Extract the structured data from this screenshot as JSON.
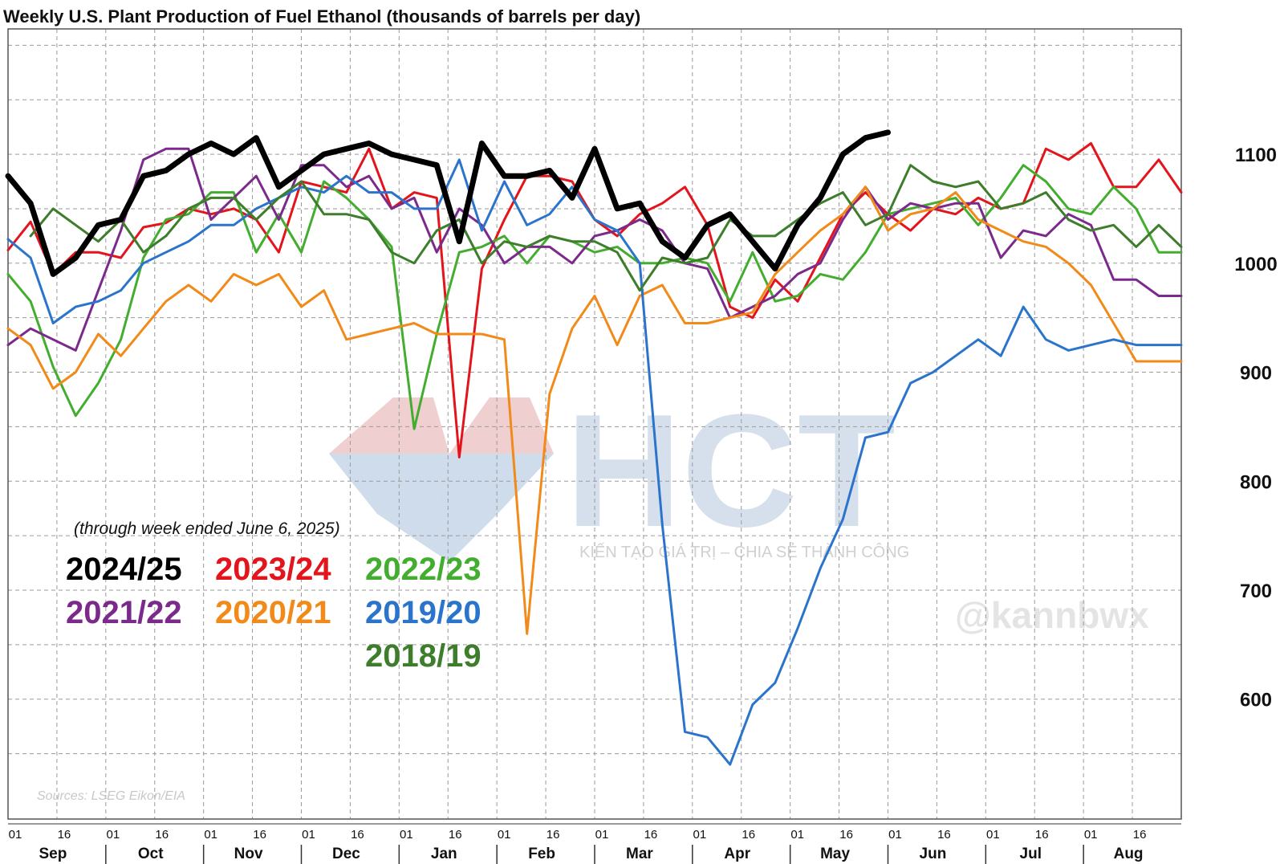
{
  "watermark": {
    "brand": "HCT",
    "tagline": "KIẾN TẠO GIÁ TRỊ – CHIA SẺ THÀNH CÔNG",
    "handle": "@kannbwx",
    "colors": {
      "red": "#e9b9bd",
      "blue": "#b9cde4"
    }
  },
  "chart_data": {
    "type": "line",
    "title": "Weekly U.S. Plant Production of Fuel Ethanol (thousands of barrels per day)",
    "note": "(through week ended June 6, 2025)",
    "source": "Sources: LSEG Eikon/EIA",
    "ylim": [
      490,
      1215
    ],
    "yticks": [
      600,
      700,
      800,
      900,
      1000,
      1100
    ],
    "y_axis_side": "right",
    "grid": true,
    "legend_placement": "lower-left",
    "x_axis": {
      "unit": "week",
      "start": "Sep 01",
      "end": "end of Aug",
      "range": [
        0,
        52
      ]
    },
    "months": [
      "Sep",
      "Oct",
      "Nov",
      "Dec",
      "Jan",
      "Feb",
      "Mar",
      "Apr",
      "May",
      "Jun",
      "Jul",
      "Aug"
    ],
    "day_ticks": [
      "01",
      "16"
    ],
    "series": [
      {
        "name": "2023/24",
        "color": "#e3141b",
        "width": 3,
        "x": [
          0,
          1,
          2,
          3,
          4,
          5,
          6,
          7,
          8,
          9,
          10,
          11,
          12,
          13,
          14,
          15,
          16,
          17,
          18,
          19,
          20,
          21,
          22,
          23,
          24,
          25,
          26,
          27,
          28,
          29,
          30,
          31,
          32,
          33,
          34,
          35,
          36,
          37,
          38,
          39,
          40,
          41,
          42,
          43,
          44,
          45,
          46,
          47,
          48,
          49,
          50,
          51,
          52
        ],
        "y": [
          1012,
          1038,
          990,
          1010,
          1010,
          1005,
          1033,
          1037,
          1050,
          1045,
          1050,
          1040,
          1010,
          1075,
          1070,
          1065,
          1105,
          1050,
          1065,
          1060,
          822,
          995,
          1040,
          1080,
          1080,
          1075,
          1040,
          1025,
          1045,
          1055,
          1070,
          1035,
          960,
          950,
          985,
          965,
          1005,
          1045,
          1065,
          1045,
          1030,
          1050,
          1045,
          1060,
          1050,
          1055,
          1105,
          1095,
          1110,
          1070,
          1070,
          1095,
          1065
        ]
      },
      {
        "name": "2022/23",
        "color": "#43ad2f",
        "width": 3,
        "x": [
          0,
          1,
          2,
          3,
          4,
          5,
          6,
          7,
          8,
          9,
          10,
          11,
          12,
          13,
          14,
          15,
          16,
          17,
          18,
          19,
          20,
          21,
          22,
          23,
          24,
          25,
          26,
          27,
          28,
          29,
          30,
          31,
          32,
          33,
          34,
          35,
          36,
          37,
          38,
          39,
          40,
          41,
          42,
          43,
          44,
          45,
          46,
          47,
          48,
          49,
          50,
          51,
          52
        ],
        "y": [
          990,
          965,
          905,
          860,
          890,
          930,
          1005,
          1040,
          1045,
          1065,
          1065,
          1010,
          1045,
          1010,
          1075,
          1060,
          1040,
          1015,
          848,
          935,
          1010,
          1015,
          1025,
          1000,
          1025,
          1020,
          1010,
          1015,
          1000,
          1000,
          1005,
          1000,
          965,
          1010,
          965,
          970,
          990,
          985,
          1010,
          1045,
          1050,
          1055,
          1060,
          1035,
          1060,
          1090,
          1075,
          1050,
          1045,
          1070,
          1050,
          1010,
          1010
        ]
      },
      {
        "name": "2021/22",
        "color": "#7b2a8c",
        "width": 3,
        "x": [
          0,
          1,
          2,
          3,
          4,
          5,
          6,
          7,
          8,
          9,
          10,
          11,
          12,
          13,
          14,
          15,
          16,
          17,
          18,
          19,
          20,
          21,
          22,
          23,
          24,
          25,
          26,
          27,
          28,
          29,
          30,
          31,
          32,
          33,
          34,
          35,
          36,
          37,
          38,
          39,
          40,
          41,
          42,
          43,
          44,
          45,
          46,
          47,
          48,
          49,
          50,
          51,
          52
        ],
        "y": [
          925,
          940,
          930,
          920,
          975,
          1030,
          1095,
          1105,
          1105,
          1040,
          1060,
          1080,
          1040,
          1090,
          1090,
          1070,
          1080,
          1050,
          1060,
          1010,
          1050,
          1035,
          1000,
          1015,
          1015,
          1000,
          1025,
          1030,
          1040,
          1030,
          1000,
          995,
          950,
          960,
          970,
          990,
          1000,
          1040,
          1070,
          1040,
          1055,
          1050,
          1055,
          1055,
          1005,
          1030,
          1025,
          1045,
          1035,
          985,
          985,
          970,
          970
        ]
      },
      {
        "name": "2020/21",
        "color": "#f28a1a",
        "width": 3,
        "x": [
          0,
          1,
          2,
          3,
          4,
          5,
          6,
          7,
          8,
          9,
          10,
          11,
          12,
          13,
          14,
          15,
          16,
          17,
          18,
          19,
          20,
          21,
          22,
          23,
          24,
          25,
          26,
          27,
          28,
          29,
          30,
          31,
          32,
          33,
          34,
          35,
          36,
          37,
          38,
          39,
          40,
          41,
          42,
          43,
          44,
          45,
          46,
          47,
          48,
          49,
          50,
          51,
          52
        ],
        "y": [
          940,
          925,
          885,
          900,
          935,
          915,
          940,
          965,
          980,
          965,
          990,
          980,
          990,
          960,
          975,
          930,
          935,
          940,
          945,
          935,
          935,
          935,
          930,
          660,
          880,
          940,
          970,
          925,
          970,
          980,
          945,
          945,
          950,
          955,
          990,
          1010,
          1030,
          1045,
          1070,
          1030,
          1045,
          1050,
          1065,
          1040,
          1030,
          1020,
          1015,
          1000,
          980,
          945,
          910,
          910,
          910
        ]
      },
      {
        "name": "2019/20",
        "color": "#2a74cc",
        "width": 3,
        "x": [
          0,
          1,
          2,
          3,
          4,
          5,
          6,
          7,
          8,
          9,
          10,
          11,
          12,
          13,
          14,
          15,
          16,
          17,
          18,
          19,
          20,
          21,
          22,
          23,
          24,
          25,
          26,
          27,
          28,
          29,
          30,
          31,
          32,
          33,
          34,
          35,
          36,
          37,
          38,
          39,
          40,
          41,
          42,
          43,
          44,
          45,
          46,
          47,
          48,
          49,
          50,
          51,
          52
        ],
        "y": [
          1022,
          1005,
          945,
          960,
          965,
          975,
          1000,
          1010,
          1020,
          1035,
          1035,
          1050,
          1060,
          1070,
          1065,
          1080,
          1065,
          1065,
          1050,
          1050,
          1095,
          1030,
          1075,
          1035,
          1045,
          1070,
          1040,
          1030,
          1000,
          760,
          570,
          565,
          540,
          595,
          615,
          665,
          720,
          765,
          840,
          845,
          890,
          900,
          915,
          930,
          915,
          960,
          930,
          920,
          925,
          930,
          925,
          925,
          925
        ]
      },
      {
        "name": "2018/19",
        "color": "#3d7d2b",
        "width": 3,
        "x": [
          1,
          2,
          3,
          4,
          5,
          6,
          7,
          8,
          9,
          10,
          11,
          12,
          13,
          14,
          15,
          16,
          17,
          18,
          19,
          20,
          21,
          22,
          23,
          24,
          25,
          26,
          27,
          28,
          29,
          30,
          31,
          32,
          33,
          34,
          35,
          36,
          37,
          38,
          39,
          40,
          41,
          42,
          43,
          44,
          45,
          46,
          47,
          48,
          49,
          50,
          51,
          52
        ],
        "y": [
          1025,
          1050,
          1035,
          1020,
          1040,
          1010,
          1025,
          1050,
          1060,
          1060,
          1040,
          1060,
          1075,
          1045,
          1045,
          1040,
          1010,
          1000,
          1030,
          1040,
          1000,
          1020,
          1015,
          1025,
          1020,
          1020,
          1010,
          975,
          1005,
          1000,
          1005,
          1040,
          1025,
          1025,
          1040,
          1055,
          1065,
          1035,
          1045,
          1090,
          1075,
          1070,
          1075,
          1050,
          1055,
          1065,
          1040,
          1030,
          1035,
          1015,
          1035,
          1015
        ]
      },
      {
        "name": "2024/25",
        "color": "#000000",
        "width": 7,
        "x": [
          0,
          1,
          2,
          3,
          4,
          5,
          6,
          7,
          8,
          9,
          10,
          11,
          12,
          13,
          14,
          15,
          16,
          17,
          18,
          19,
          20,
          21,
          22,
          23,
          24,
          25,
          26,
          27,
          28,
          29,
          30,
          31,
          32,
          33,
          34,
          35,
          36,
          37,
          38,
          39
        ],
        "y": [
          1080,
          1055,
          990,
          1005,
          1035,
          1040,
          1080,
          1085,
          1100,
          1110,
          1100,
          1115,
          1070,
          1085,
          1100,
          1105,
          1110,
          1100,
          1095,
          1090,
          1020,
          1110,
          1080,
          1080,
          1085,
          1060,
          1105,
          1050,
          1055,
          1020,
          1005,
          1035,
          1045,
          1020,
          995,
          1035,
          1060,
          1100,
          1115,
          1120
        ]
      }
    ],
    "legend_layout": [
      [
        "2024/25",
        "2023/24",
        "2022/23"
      ],
      [
        "2021/22",
        "2020/21",
        "2019/20"
      ],
      [
        "",
        "",
        "2018/19"
      ]
    ]
  }
}
